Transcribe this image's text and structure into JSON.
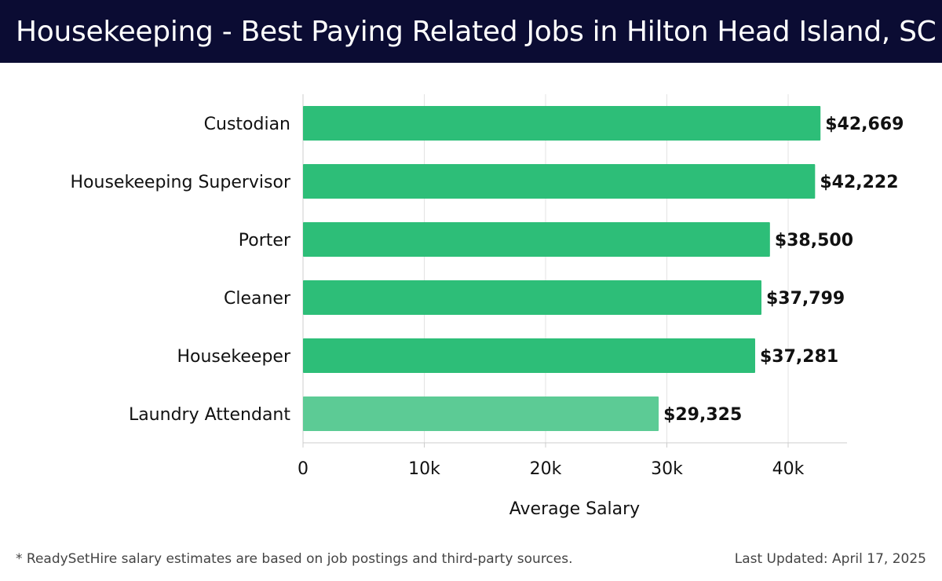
{
  "header": {
    "title": "Housekeeping - Best Paying Related Jobs in Hilton Head Island, SC"
  },
  "chart_data": {
    "type": "bar",
    "orientation": "horizontal",
    "categories": [
      "Custodian",
      "Housekeeping Supervisor",
      "Porter",
      "Cleaner",
      "Housekeeper",
      "Laundry Attendant"
    ],
    "values": [
      42669,
      42222,
      38500,
      37799,
      37281,
      29325
    ],
    "value_labels": [
      "$42,669",
      "$42,222",
      "$38,500",
      "$37,799",
      "$37,281",
      "$29,325"
    ],
    "xlabel": "Average Salary",
    "xlim": [
      0,
      45000
    ],
    "xticks": [
      0,
      10000,
      20000,
      30000,
      40000
    ],
    "xtick_labels": [
      "0",
      "10k",
      "20k",
      "30k",
      "40k"
    ],
    "grid": true,
    "colors": {
      "bar": "#2dbe78",
      "bar_light": "#5ccb95",
      "grid": "#e3e3e3",
      "axis": "#cccccc"
    }
  },
  "footer": {
    "note": "* ReadySetHire salary estimates are based on job postings and third-party sources.",
    "updated": "Last Updated: April 17, 2025"
  }
}
